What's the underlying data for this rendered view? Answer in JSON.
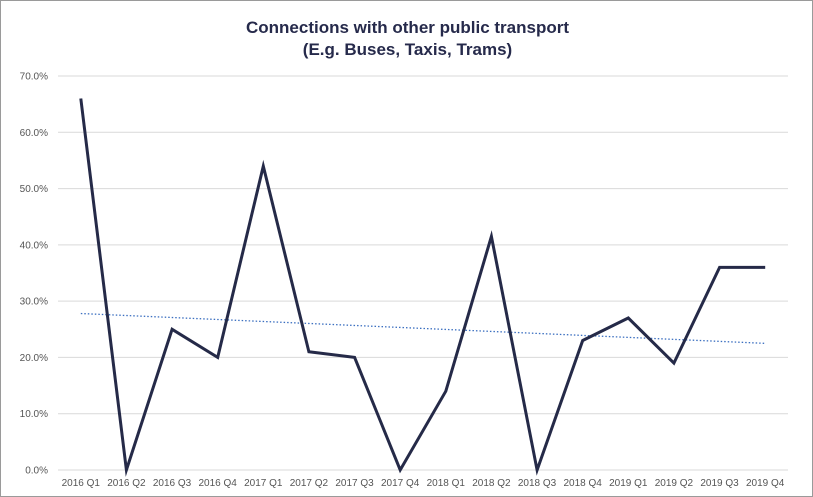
{
  "chart_data": {
    "type": "line",
    "title": "Connections with other public transport",
    "subtitle": "(E.g. Buses, Taxis, Trams)",
    "xlabel": "",
    "ylabel": "",
    "ylim": [
      0,
      70
    ],
    "y_ticks": [
      0,
      10,
      20,
      30,
      40,
      50,
      60,
      70
    ],
    "y_tick_labels": [
      "0.0%",
      "10.0%",
      "20.0%",
      "30.0%",
      "40.0%",
      "50.0%",
      "60.0%",
      "70.0%"
    ],
    "grid": true,
    "legend": "none",
    "categories": [
      "2016 Q1",
      "2016 Q2",
      "2016 Q3",
      "2016 Q4",
      "2017 Q1",
      "2017 Q2",
      "2017 Q3",
      "2017 Q4",
      "2018 Q1",
      "2018 Q2",
      "2018 Q3",
      "2018 Q4",
      "2019 Q1",
      "2019 Q2",
      "2019 Q3",
      "2019 Q4"
    ],
    "series": [
      {
        "values": [
          66,
          0,
          25,
          20,
          54,
          21,
          20,
          0,
          14,
          41.5,
          0,
          23,
          27,
          19,
          36,
          36
        ],
        "color": "#252a48",
        "style": "solid"
      }
    ],
    "trendline": {
      "type": "linear",
      "start": 27.8,
      "end": 22.5,
      "color": "#3b6fc0",
      "style": "dotted"
    }
  }
}
